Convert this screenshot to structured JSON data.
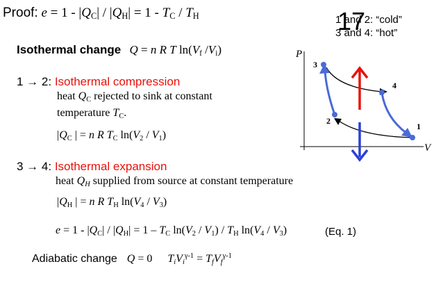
{
  "header": {
    "proof_label": "Proof:",
    "efficiency_formula": "e = 1 - |QC| / |QH| = 1 - TC / TH"
  },
  "slide_number": "17",
  "legend": {
    "cold": "1 and 2: “cold”",
    "hot": "3 and 4: “hot”"
  },
  "isothermal": {
    "label": "Isothermal change",
    "formula": "Q = n R T ln(Vf /Vi)"
  },
  "step_12": {
    "label": "1 → 2:",
    "title": "Isothermal compression",
    "text_line1": "heat QC rejected to sink at constant",
    "text_line2": "temperature TC.",
    "formula": "|QC | = n R TC ln(V2 / V1)"
  },
  "step_34": {
    "label": "3 → 4:",
    "title": "Isothermal expansion",
    "text": "heat QH supplied from source at constant temperature",
    "formula": "|QH | = n R TH ln(V4 / V3)"
  },
  "eq1": {
    "formula": "e = 1 - |QC| / |QH| = 1 – TC ln(V2 / V1) / TH ln(V4 / V3)",
    "label": "(Eq. 1)"
  },
  "adiabatic": {
    "label": "Adiabatic change",
    "q_formula": "Q = 0",
    "tv_formula": "TiViγ-1 = TfVfγ-1"
  },
  "diagram": {
    "p_axis": "P",
    "v_axis": "V",
    "point_labels": [
      "1",
      "2",
      "3",
      "4"
    ],
    "colors": {
      "red_arrow": "#e8120c",
      "blue_arrow": "#2b3fd6",
      "adiabat": "#4a6ad8",
      "isotherm": "#000000"
    }
  }
}
